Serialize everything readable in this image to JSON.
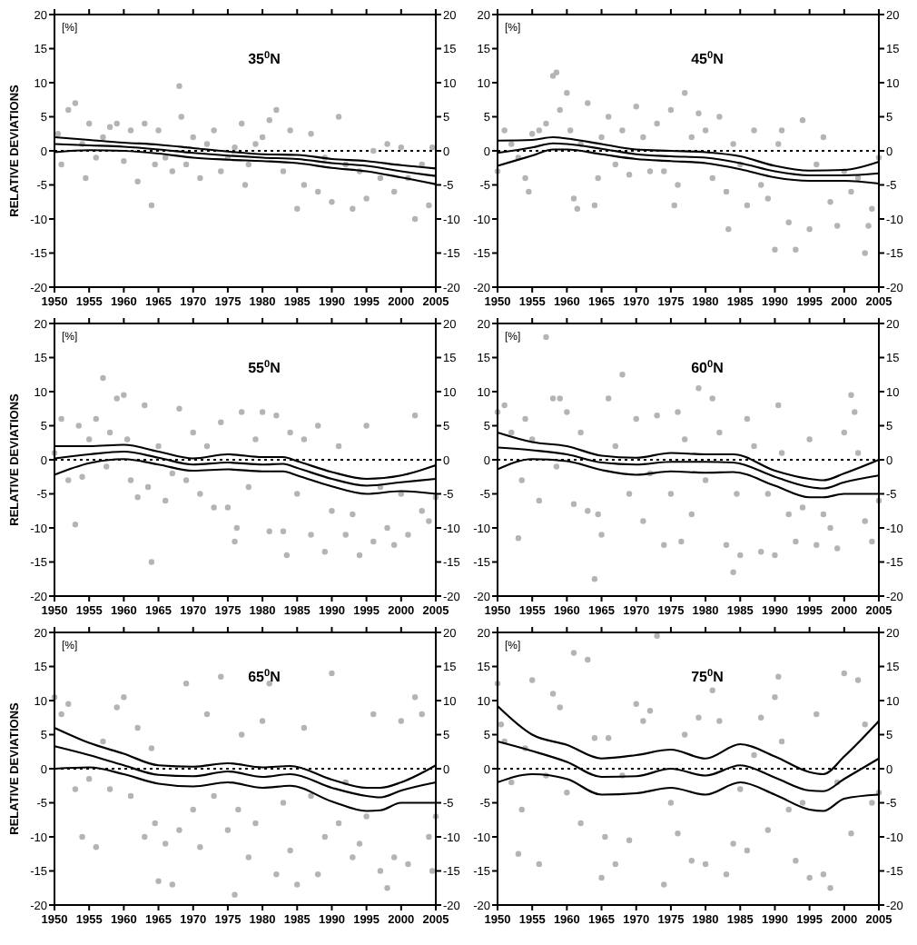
{
  "chart_data": [
    {
      "type": "scatter",
      "title": "35$^{0}$N",
      "ylabel": "RELATIVE DEVIATIONS",
      "annotations": [
        "[%]"
      ],
      "xlim": [
        1950,
        2005
      ],
      "xticks": [
        1950,
        1955,
        1960,
        1965,
        1970,
        1975,
        1980,
        1985,
        1990,
        1995,
        2000,
        2005
      ],
      "ylim": [
        -20,
        20
      ],
      "yticks": [
        -20,
        -15,
        -10,
        -5,
        0,
        5,
        10,
        15,
        20
      ],
      "y2lim": [
        -20,
        20
      ],
      "y2ticks": [
        -20,
        -15,
        -10,
        -5,
        0,
        5,
        10,
        15,
        20
      ],
      "ref_lines": [
        {
          "axis": "y",
          "value": 0,
          "color": "#000000",
          "line_style": "dotted"
        }
      ],
      "series": [
        {
          "marker": "circle",
          "color": "#b4b4b4",
          "x": [
            1950.5,
            1951,
            1952,
            1953,
            1954,
            1954.5,
            1955,
            1956,
            1957,
            1958,
            1959,
            1960,
            1961,
            1962,
            1963,
            1964,
            1964.5,
            1965,
            1966,
            1967,
            1968,
            1968.3,
            1969,
            1970,
            1971,
            1972,
            1973,
            1974,
            1975,
            1976,
            1977,
            1977.5,
            1978,
            1979,
            1980,
            1981,
            1982,
            1983,
            1984,
            1985,
            1986,
            1987,
            1988,
            1989,
            1990,
            1991,
            1992,
            1993,
            1994,
            1995,
            1996,
            1997,
            1998,
            1999,
            2000,
            2001,
            2002,
            2003,
            2004,
            2004.5
          ],
          "values": [
            2.5,
            -2,
            6,
            7,
            1,
            -4,
            4,
            -1,
            2,
            3.5,
            4,
            -1.5,
            3,
            -4.5,
            4,
            -8,
            -2,
            3,
            -1,
            -3,
            9.5,
            5,
            -2,
            2,
            -4,
            1,
            3,
            -3,
            -1,
            0.5,
            4,
            -5,
            -2,
            1,
            2,
            4.5,
            6,
            -3,
            3,
            -8.5,
            -5,
            2.5,
            -6,
            -1,
            -7.5,
            5,
            -2,
            -8.5,
            -3,
            -7,
            0,
            -4,
            1,
            -6,
            0.5,
            -4,
            -10,
            -2,
            -8,
            0.5
          ]
        },
        {
          "type": "line",
          "color": "#000000",
          "x": [
            1950,
            1955,
            1960,
            1965,
            1970,
            1975,
            1980,
            1985,
            1990,
            1995,
            2000,
            2005
          ],
          "values": [
            2,
            1.6,
            1.2,
            0.9,
            0.4,
            -0.1,
            -0.5,
            -0.6,
            -1.2,
            -1.5,
            -2.1,
            -2.6
          ]
        },
        {
          "type": "line",
          "color": "#000000",
          "x": [
            1950,
            1955,
            1960,
            1965,
            1970,
            1975,
            1980,
            1985,
            1990,
            1995,
            2000,
            2005
          ],
          "values": [
            1,
            0.8,
            0.6,
            0.2,
            -0.3,
            -0.7,
            -1,
            -1.2,
            -1.8,
            -2.2,
            -3,
            -3.7
          ]
        },
        {
          "type": "line",
          "color": "#000000",
          "x": [
            1950,
            1955,
            1960,
            1965,
            1970,
            1975,
            1980,
            1985,
            1990,
            1995,
            2000,
            2005
          ],
          "values": [
            -0.2,
            0.1,
            0,
            -0.4,
            -1,
            -1.3,
            -1.5,
            -1.8,
            -2.5,
            -3,
            -3.9,
            -4.9
          ]
        }
      ]
    },
    {
      "type": "scatter",
      "title": "45$^{0}$N",
      "annotations": [
        "[%]"
      ],
      "xlim": [
        1950,
        2005
      ],
      "xticks": [
        1950,
        1955,
        1960,
        1965,
        1970,
        1975,
        1980,
        1985,
        1990,
        1995,
        2000,
        2005
      ],
      "ylim": [
        -20,
        20
      ],
      "yticks": [
        -20,
        -15,
        -10,
        -5,
        0,
        5,
        10,
        15,
        20
      ],
      "y2lim": [
        -20,
        20
      ],
      "y2ticks": [
        -20,
        -15,
        -10,
        -5,
        0,
        5,
        10,
        15,
        20
      ],
      "ref_lines": [
        {
          "axis": "y",
          "value": 0,
          "color": "#000000",
          "line_style": "dotted"
        }
      ],
      "series": [
        {
          "marker": "circle",
          "color": "#b4b4b4",
          "x": [
            1950,
            1951,
            1952,
            1953,
            1954,
            1954.5,
            1955,
            1956,
            1957,
            1958,
            1958.5,
            1959,
            1960,
            1960.5,
            1961,
            1961.5,
            1962,
            1963,
            1964,
            1964.5,
            1965,
            1966,
            1967,
            1968,
            1969,
            1970,
            1971,
            1972,
            1973,
            1974,
            1975,
            1975.5,
            1976,
            1977,
            1978,
            1979,
            1980,
            1981,
            1982,
            1983,
            1983.3,
            1984,
            1985,
            1986,
            1987,
            1988,
            1989,
            1990,
            1990.5,
            1991,
            1992,
            1993,
            1994,
            1995,
            1996,
            1997,
            1998,
            1999,
            2000,
            2001,
            2002,
            2003,
            2003.5,
            2004,
            2005
          ],
          "values": [
            -3,
            3,
            1,
            -1,
            -4,
            -6,
            2.5,
            3,
            4,
            11,
            11.5,
            6,
            8.5,
            3,
            -7,
            -8.5,
            1,
            7,
            -8,
            -4,
            2,
            5,
            -2,
            3,
            -3.5,
            6.5,
            2,
            -3,
            4,
            -3,
            6,
            -8,
            -5,
            8.5,
            2,
            5.5,
            3,
            -4,
            5,
            -6,
            -11.5,
            1,
            -2,
            -8,
            3,
            -5,
            -7,
            -14.5,
            1,
            3,
            -10.5,
            -14.5,
            4.5,
            -11.5,
            -2,
            2,
            -7.5,
            -11,
            -3,
            -6,
            -4,
            -15,
            -11,
            -8.5,
            -1
          ]
        },
        {
          "type": "line",
          "color": "#000000",
          "x": [
            1950,
            1955,
            1958,
            1960,
            1965,
            1970,
            1975,
            1980,
            1985,
            1990,
            1995,
            2000,
            2005
          ],
          "values": [
            1.5,
            1.6,
            2,
            1.8,
            1,
            0.2,
            0,
            -0.2,
            -0.8,
            -2.2,
            -2.9,
            -2.8,
            -1.6
          ]
        },
        {
          "type": "line",
          "color": "#000000",
          "x": [
            1950,
            1955,
            1958,
            1960,
            1965,
            1970,
            1975,
            1980,
            1985,
            1990,
            1995,
            2000,
            2005
          ],
          "values": [
            -0.3,
            0.5,
            1.1,
            1,
            0.3,
            -0.5,
            -0.8,
            -1,
            -1.8,
            -3,
            -3.6,
            -3.6,
            -3.3
          ]
        },
        {
          "type": "line",
          "color": "#000000",
          "x": [
            1950,
            1955,
            1958,
            1960,
            1965,
            1970,
            1975,
            1980,
            1985,
            1990,
            1995,
            2000,
            2005
          ],
          "values": [
            -2.2,
            -0.7,
            0.2,
            0.2,
            -0.5,
            -1.2,
            -1.5,
            -1.8,
            -2.7,
            -3.9,
            -4.4,
            -4.4,
            -4.8
          ]
        }
      ]
    },
    {
      "type": "scatter",
      "title": "55$^{0}$N",
      "ylabel": "RELATIVE DEVIATIONS",
      "annotations": [
        "[%]"
      ],
      "xlim": [
        1950,
        2005
      ],
      "xticks": [
        1950,
        1955,
        1960,
        1965,
        1970,
        1975,
        1980,
        1985,
        1990,
        1995,
        2000,
        2005
      ],
      "ylim": [
        -20,
        20
      ],
      "yticks": [
        -20,
        -15,
        -10,
        -5,
        0,
        5,
        10,
        15,
        20
      ],
      "y2lim": [
        -20,
        20
      ],
      "y2ticks": [
        -20,
        -15,
        -10,
        -5,
        0,
        5,
        10,
        15,
        20
      ],
      "ref_lines": [
        {
          "axis": "y",
          "value": 0,
          "color": "#000000",
          "line_style": "dotted"
        }
      ],
      "series": [
        {
          "marker": "circle",
          "color": "#b4b4b4",
          "x": [
            1950,
            1951,
            1952,
            1953,
            1953.5,
            1954,
            1955,
            1956,
            1957,
            1957.5,
            1958,
            1959,
            1960,
            1960.5,
            1961,
            1962,
            1963,
            1963.5,
            1964,
            1965,
            1966,
            1967,
            1968,
            1969,
            1970,
            1971,
            1972,
            1973,
            1974,
            1975,
            1976,
            1976.3,
            1977,
            1978,
            1979,
            1980,
            1981,
            1982,
            1983,
            1983.5,
            1984,
            1985,
            1986,
            1987,
            1988,
            1989,
            1990,
            1991,
            1992,
            1993,
            1994,
            1995,
            1996,
            1997,
            1998,
            1999,
            2000,
            2001,
            2002,
            2003,
            2004,
            2005
          ],
          "values": [
            1,
            6,
            -3,
            -9.5,
            5,
            -2.5,
            3,
            6,
            12,
            -1,
            4,
            9,
            9.5,
            3,
            -3,
            -5.5,
            8,
            -4,
            -15,
            2,
            -6,
            -2,
            7.5,
            -3,
            4,
            -5,
            2,
            -7,
            5.5,
            -7,
            -12,
            -10,
            7,
            -4,
            3,
            7,
            -10.5,
            6.5,
            -10.5,
            -14,
            4,
            -5,
            3,
            -11,
            5,
            -13.5,
            -7.5,
            2,
            -11,
            -8,
            -14,
            5,
            -12,
            -4,
            -10,
            -12.5,
            -5,
            -11,
            6.5,
            -7.5,
            -9,
            -5.5
          ]
        },
        {
          "type": "line",
          "color": "#000000",
          "x": [
            1950,
            1955,
            1960,
            1965,
            1970,
            1975,
            1980,
            1983,
            1985,
            1990,
            1995,
            2000,
            2005
          ],
          "values": [
            2,
            2,
            2.2,
            1.2,
            0.2,
            0.8,
            0.4,
            0.4,
            -0.2,
            -1.8,
            -2.8,
            -2.3,
            -0.8
          ]
        },
        {
          "type": "line",
          "color": "#000000",
          "x": [
            1950,
            1955,
            1960,
            1965,
            1970,
            1975,
            1980,
            1983,
            1985,
            1990,
            1995,
            2000,
            2005
          ],
          "values": [
            0.2,
            0.8,
            1.2,
            0.3,
            -0.7,
            -0.4,
            -0.7,
            -0.6,
            -1.2,
            -2.8,
            -3.8,
            -3.3,
            -2.8
          ]
        },
        {
          "type": "line",
          "color": "#000000",
          "x": [
            1950,
            1955,
            1960,
            1965,
            1970,
            1975,
            1980,
            1983,
            1985,
            1990,
            1995,
            2000,
            2005
          ],
          "values": [
            -2.2,
            -0.5,
            0.1,
            -0.7,
            -1.6,
            -1.4,
            -1.7,
            -1.7,
            -2.3,
            -3.9,
            -5,
            -4.6,
            -5
          ]
        }
      ]
    },
    {
      "type": "scatter",
      "title": "60$^{0}$N",
      "annotations": [
        "[%]"
      ],
      "xlim": [
        1950,
        2005
      ],
      "xticks": [
        1950,
        1955,
        1960,
        1965,
        1970,
        1975,
        1980,
        1985,
        1990,
        1995,
        2000,
        2005
      ],
      "ylim": [
        -20,
        20
      ],
      "yticks": [
        -20,
        -15,
        -10,
        -5,
        0,
        5,
        10,
        15,
        20
      ],
      "y2lim": [
        -20,
        20
      ],
      "y2ticks": [
        -20,
        -15,
        -10,
        -5,
        0,
        5,
        10,
        15,
        20
      ],
      "ref_lines": [
        {
          "axis": "y",
          "value": 0,
          "color": "#000000",
          "line_style": "dotted"
        }
      ],
      "series": [
        {
          "marker": "circle",
          "color": "#b4b4b4",
          "x": [
            1950,
            1951,
            1952,
            1953,
            1953.5,
            1954,
            1955,
            1956,
            1957,
            1958,
            1958.5,
            1959,
            1960,
            1961,
            1962,
            1963,
            1964,
            1964.5,
            1965,
            1966,
            1967,
            1968,
            1969,
            1970,
            1971,
            1972,
            1973,
            1974,
            1975,
            1976,
            1976.5,
            1977,
            1978,
            1979,
            1980,
            1981,
            1982,
            1983,
            1984,
            1984.5,
            1985,
            1986,
            1987,
            1988,
            1989,
            1990,
            1990.5,
            1991,
            1992,
            1993,
            1994,
            1995,
            1996,
            1997,
            1998,
            1999,
            2000,
            2001,
            2001.5,
            2002,
            2003,
            2004,
            2005
          ],
          "values": [
            7,
            8,
            4,
            -11.5,
            -3,
            6,
            3,
            -6,
            18,
            9,
            -1,
            9,
            7,
            -6.5,
            4,
            -7.5,
            -17.5,
            -8,
            -11,
            9,
            2,
            12.5,
            -5,
            6,
            -9,
            -2,
            6.5,
            -12.5,
            -5,
            7,
            -12,
            3,
            -8,
            10.5,
            -3,
            9,
            4,
            -12.5,
            -16.5,
            -5,
            -14,
            6,
            2,
            -13.5,
            -5,
            -14,
            8,
            1,
            -8,
            -12,
            -7,
            3,
            -12.5,
            -8,
            -10,
            -13,
            4,
            9.5,
            7,
            1,
            -9,
            -12,
            -6
          ]
        },
        {
          "type": "line",
          "color": "#000000",
          "x": [
            1950,
            1955,
            1960,
            1965,
            1970,
            1975,
            1980,
            1984,
            1990,
            1995,
            1997,
            2000,
            2005
          ],
          "values": [
            4,
            2.6,
            2,
            0.6,
            0.3,
            1,
            0.8,
            0.8,
            -1.6,
            -2.8,
            -3,
            -2,
            0
          ]
        },
        {
          "type": "line",
          "color": "#000000",
          "x": [
            1950,
            1955,
            1960,
            1965,
            1970,
            1975,
            1980,
            1984,
            1990,
            1995,
            1997,
            2000,
            2005
          ],
          "values": [
            1.8,
            1.4,
            0.8,
            -0.4,
            -0.7,
            -0.3,
            -0.3,
            -0.4,
            -2.5,
            -4,
            -4.2,
            -3.3,
            -2.3
          ]
        },
        {
          "type": "line",
          "color": "#000000",
          "x": [
            1950,
            1955,
            1960,
            1965,
            1970,
            1975,
            1980,
            1984,
            1990,
            1995,
            1997,
            2000,
            2005
          ],
          "values": [
            -1.4,
            0.1,
            -0.2,
            -1.5,
            -2.2,
            -1.7,
            -1.9,
            -1.8,
            -3.8,
            -5.5,
            -5.5,
            -5,
            -5
          ]
        }
      ]
    },
    {
      "type": "scatter",
      "title": "65$^{0}$N",
      "ylabel": "RELATIVE DEVIATIONS",
      "annotations": [
        "[%]"
      ],
      "xlim": [
        1950,
        2005
      ],
      "xticks": [
        1950,
        1955,
        1960,
        1965,
        1970,
        1975,
        1980,
        1985,
        1990,
        1995,
        2000,
        2005
      ],
      "ylim": [
        -20,
        20
      ],
      "yticks": [
        -20,
        -15,
        -10,
        -5,
        0,
        5,
        10,
        15,
        20
      ],
      "y2lim": [
        -20,
        20
      ],
      "y2ticks": [
        -20,
        -15,
        -10,
        -5,
        0,
        5,
        10,
        15,
        20
      ],
      "ref_lines": [
        {
          "axis": "y",
          "value": 0,
          "color": "#000000",
          "line_style": "dotted"
        }
      ],
      "series": [
        {
          "marker": "circle",
          "color": "#b4b4b4",
          "x": [
            1950,
            1951,
            1952,
            1953,
            1954,
            1955,
            1956,
            1957,
            1958,
            1959,
            1960,
            1961,
            1962,
            1963,
            1964,
            1964.5,
            1965,
            1966,
            1967,
            1968,
            1969,
            1970,
            1971,
            1972,
            1973,
            1974,
            1975,
            1976,
            1976.5,
            1977,
            1978,
            1979,
            1980,
            1981,
            1982,
            1983,
            1984,
            1985,
            1986,
            1987,
            1988,
            1989,
            1990,
            1991,
            1992,
            1993,
            1994,
            1995,
            1996,
            1997,
            1998,
            1999,
            2000,
            2001,
            2002,
            2003,
            2004,
            2004.5,
            2005
          ],
          "values": [
            10.5,
            8,
            9.5,
            -3,
            -10,
            -1.5,
            -11.5,
            4,
            -3,
            9,
            10.5,
            -4,
            6,
            -10,
            3,
            -8,
            -16.5,
            -11,
            -17,
            -9,
            12.5,
            -6,
            -11.5,
            8,
            -4,
            13.5,
            -9,
            -18.5,
            -6,
            5,
            -13,
            -8,
            7,
            12.5,
            -15.5,
            -5,
            -12,
            -17,
            6,
            -4,
            -15.5,
            -10,
            14,
            -8,
            -2,
            -13,
            -11,
            -7,
            8,
            -15,
            -17.5,
            -13,
            7,
            -14,
            10.5,
            8,
            -10,
            -15,
            -7
          ]
        },
        {
          "type": "line",
          "color": "#000000",
          "x": [
            1950,
            1955,
            1960,
            1965,
            1970,
            1975,
            1980,
            1984,
            1990,
            1995,
            1997,
            2000,
            2005
          ],
          "values": [
            6,
            3.8,
            2.2,
            0.5,
            0.3,
            0.8,
            0.2,
            0.4,
            -1.6,
            -2.8,
            -2.8,
            -2,
            0.5
          ]
        },
        {
          "type": "line",
          "color": "#000000",
          "x": [
            1950,
            1955,
            1960,
            1965,
            1970,
            1975,
            1980,
            1984,
            1990,
            1995,
            1997,
            2000,
            2005
          ],
          "values": [
            3.3,
            2,
            0.5,
            -0.9,
            -1.1,
            -0.4,
            -1.2,
            -0.8,
            -2.8,
            -4,
            -4.2,
            -3.2,
            -2
          ]
        },
        {
          "type": "line",
          "color": "#000000",
          "x": [
            1950,
            1955,
            1960,
            1965,
            1970,
            1975,
            1980,
            1984,
            1990,
            1995,
            1997,
            2000,
            2005
          ],
          "values": [
            0,
            0.2,
            -0.8,
            -2.2,
            -2.6,
            -2,
            -2.8,
            -2.5,
            -4.8,
            -6.2,
            -6.1,
            -5,
            -5
          ]
        }
      ]
    },
    {
      "type": "scatter",
      "title": "75$^{0}$N",
      "annotations": [
        "[%]"
      ],
      "xlim": [
        1950,
        2005
      ],
      "xticks": [
        1950,
        1955,
        1960,
        1965,
        1970,
        1975,
        1980,
        1985,
        1990,
        1995,
        2000,
        2005
      ],
      "ylim": [
        -20,
        20
      ],
      "yticks": [
        -20,
        -15,
        -10,
        -5,
        0,
        5,
        10,
        15,
        20
      ],
      "y2lim": [
        -20,
        20
      ],
      "y2ticks": [
        -20,
        -15,
        -10,
        -5,
        0,
        5,
        10,
        15,
        20
      ],
      "ref_lines": [
        {
          "axis": "y",
          "value": 0,
          "color": "#000000",
          "line_style": "dotted"
        }
      ],
      "series": [
        {
          "marker": "circle",
          "color": "#b4b4b4",
          "x": [
            1950,
            1950.5,
            1951,
            1952,
            1953,
            1953.5,
            1954,
            1955,
            1956,
            1957,
            1958,
            1959,
            1960,
            1961,
            1962,
            1963,
            1964,
            1965,
            1965.5,
            1966,
            1967,
            1968,
            1969,
            1970,
            1971,
            1972,
            1973,
            1974,
            1975,
            1976,
            1977,
            1978,
            1979,
            1980,
            1981,
            1982,
            1983,
            1984,
            1985,
            1986,
            1987,
            1988,
            1989,
            1990,
            1990.5,
            1991,
            1992,
            1993,
            1994,
            1995,
            1996,
            1997,
            1998,
            1999,
            2000,
            2001,
            2002,
            2003,
            2004,
            2005
          ],
          "values": [
            12.5,
            6.5,
            4,
            -2,
            -12.5,
            -6,
            3,
            13,
            -14,
            -1,
            11,
            9,
            -3.5,
            17,
            -8,
            16,
            4.5,
            -16,
            -10,
            4.5,
            -14,
            -1,
            -10.5,
            9.5,
            7,
            8.5,
            19.5,
            -17,
            -5,
            -9.5,
            5,
            -13.5,
            7.5,
            -14,
            11.5,
            7,
            -15.5,
            -11,
            -3,
            -12,
            2,
            7.5,
            -9,
            10.5,
            13.5,
            4,
            -6,
            -13.5,
            -5,
            -16,
            8,
            -15.5,
            -17.5,
            -2,
            14,
            -9.5,
            13,
            6.5,
            -5,
            -3.5
          ]
        },
        {
          "type": "line",
          "color": "#000000",
          "x": [
            1950,
            1955,
            1960,
            1965,
            1970,
            1975,
            1980,
            1985,
            1990,
            1995,
            1997,
            2000,
            2005
          ],
          "values": [
            9.2,
            5,
            3.5,
            1.5,
            2,
            2.8,
            1.5,
            3.6,
            1.8,
            -0.5,
            -0.8,
            1.8,
            7
          ]
        },
        {
          "type": "line",
          "color": "#000000",
          "x": [
            1950,
            1955,
            1960,
            1965,
            1970,
            1975,
            1980,
            1985,
            1990,
            1995,
            1997,
            2000,
            2005
          ],
          "values": [
            4,
            2.6,
            1,
            -1.2,
            -1.1,
            0,
            -1,
            0.5,
            -1.3,
            -3.2,
            -3.3,
            -1.5,
            1.5
          ]
        },
        {
          "type": "line",
          "color": "#000000",
          "x": [
            1950,
            1955,
            1960,
            1965,
            1970,
            1975,
            1980,
            1985,
            1990,
            1995,
            1997,
            2000,
            2005
          ],
          "values": [
            -2,
            -0.8,
            -1.5,
            -3.8,
            -3.6,
            -2.8,
            -3.8,
            -2,
            -3.8,
            -6,
            -6.2,
            -4.4,
            -3.8
          ]
        }
      ]
    }
  ]
}
